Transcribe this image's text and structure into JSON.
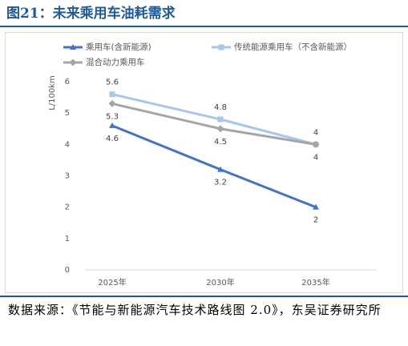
{
  "figure": {
    "title": "图21：未来乘用车油耗需求",
    "source": "数据来源：《节能与新能源汽车技术路线图 2.0》，东吴证券研究所"
  },
  "chart_data": {
    "type": "line",
    "title": "",
    "xlabel": "",
    "ylabel": "L/100km",
    "categories": [
      "2025年",
      "2030年",
      "2035年"
    ],
    "ylim": [
      0,
      6
    ],
    "yticks": [
      0,
      1,
      2,
      3,
      4,
      5,
      6
    ],
    "grid": false,
    "legend_position": "top",
    "series": [
      {
        "name": "乘用车(含新能源)",
        "values": [
          4.6,
          3.2,
          2
        ],
        "color": "#4472c4",
        "marker": "triangle",
        "label_position": "below"
      },
      {
        "name": "传统能源乘用车（不含新能源）",
        "values": [
          5.6,
          4.8,
          4
        ],
        "color": "#a9c6ea",
        "marker": "square",
        "label_position": "above"
      },
      {
        "name": "混合动力乘用车",
        "values": [
          5.3,
          4.5,
          4
        ],
        "color": "#a5a5a5",
        "marker": "diamond",
        "label_position": "below"
      }
    ]
  }
}
